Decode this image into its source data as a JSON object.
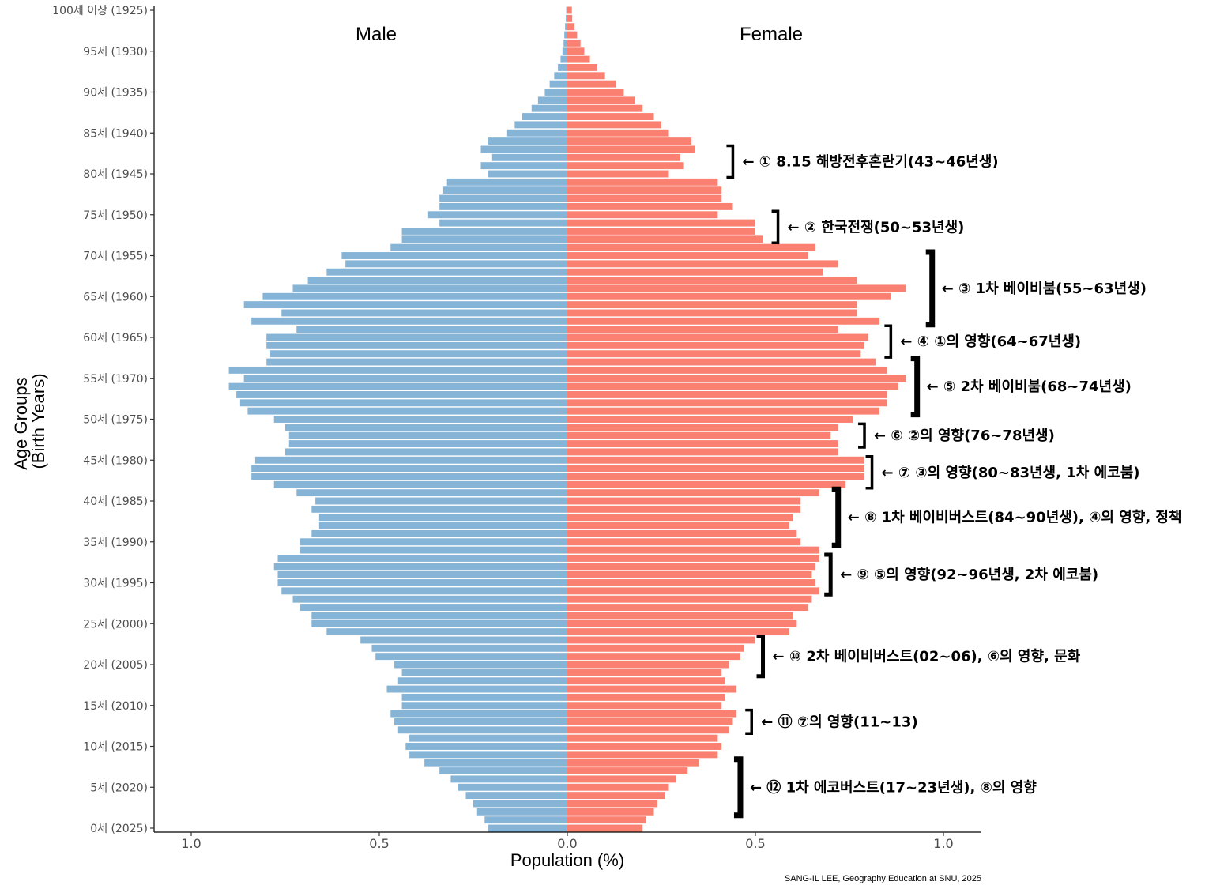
{
  "chart_data": {
    "type": "bar",
    "orientation": "horizontal",
    "subtype": "population-pyramid",
    "xlabel": "Population (%)",
    "ylabel": "Age Groups\n(Birth Years)",
    "xlim": [
      -1.1,
      1.1
    ],
    "x_ticks": [
      -1.0,
      -0.5,
      0.0,
      0.5,
      1.0
    ],
    "x_tick_labels": [
      "1.0",
      "0.5",
      "0.0",
      "0.5",
      "1.0"
    ],
    "grid": false,
    "panel_labels": [
      "Male",
      "Female"
    ],
    "colors": {
      "male": "#86b4d6",
      "female": "#fa8072",
      "axis": "#000000",
      "tick_text": "#4d4d4d"
    },
    "y_ticks": [
      {
        "age": 100,
        "label": "100세 이상 (1925)"
      },
      {
        "age": 95,
        "label": "95세 (1930)"
      },
      {
        "age": 90,
        "label": "90세 (1935)"
      },
      {
        "age": 85,
        "label": "85세 (1940)"
      },
      {
        "age": 80,
        "label": "80세 (1945)"
      },
      {
        "age": 75,
        "label": "75세 (1950)"
      },
      {
        "age": 70,
        "label": "70세 (1955)"
      },
      {
        "age": 65,
        "label": "65세 (1960)"
      },
      {
        "age": 60,
        "label": "60세 (1965)"
      },
      {
        "age": 55,
        "label": "55세 (1970)"
      },
      {
        "age": 50,
        "label": "50세 (1975)"
      },
      {
        "age": 45,
        "label": "45세 (1980)"
      },
      {
        "age": 40,
        "label": "40세 (1985)"
      },
      {
        "age": 35,
        "label": "35세 (1990)"
      },
      {
        "age": 30,
        "label": "30세 (1995)"
      },
      {
        "age": 25,
        "label": "25세 (2000)"
      },
      {
        "age": 20,
        "label": "20세 (2005)"
      },
      {
        "age": 15,
        "label": "15세 (2010)"
      },
      {
        "age": 10,
        "label": "10세 (2015)"
      },
      {
        "age": 5,
        "label": "5세 (2020)"
      },
      {
        "age": 0,
        "label": "0세 (2025)"
      }
    ],
    "ages": [
      0,
      1,
      2,
      3,
      4,
      5,
      6,
      7,
      8,
      9,
      10,
      11,
      12,
      13,
      14,
      15,
      16,
      17,
      18,
      19,
      20,
      21,
      22,
      23,
      24,
      25,
      26,
      27,
      28,
      29,
      30,
      31,
      32,
      33,
      34,
      35,
      36,
      37,
      38,
      39,
      40,
      41,
      42,
      43,
      44,
      45,
      46,
      47,
      48,
      49,
      50,
      51,
      52,
      53,
      54,
      55,
      56,
      57,
      58,
      59,
      60,
      61,
      62,
      63,
      64,
      65,
      66,
      67,
      68,
      69,
      70,
      71,
      72,
      73,
      74,
      75,
      76,
      77,
      78,
      79,
      80,
      81,
      82,
      83,
      84,
      85,
      86,
      87,
      88,
      89,
      90,
      91,
      92,
      93,
      94,
      95,
      96,
      97,
      98,
      99,
      100
    ],
    "series": [
      {
        "name": "Male",
        "values": [
          0.21,
          0.22,
          0.24,
          0.25,
          0.27,
          0.29,
          0.31,
          0.34,
          0.38,
          0.42,
          0.43,
          0.42,
          0.45,
          0.46,
          0.47,
          0.44,
          0.44,
          0.48,
          0.45,
          0.44,
          0.46,
          0.51,
          0.52,
          0.55,
          0.64,
          0.68,
          0.68,
          0.71,
          0.73,
          0.76,
          0.77,
          0.77,
          0.78,
          0.77,
          0.71,
          0.71,
          0.68,
          0.66,
          0.66,
          0.68,
          0.67,
          0.72,
          0.78,
          0.84,
          0.84,
          0.83,
          0.75,
          0.74,
          0.74,
          0.75,
          0.78,
          0.85,
          0.87,
          0.88,
          0.9,
          0.86,
          0.9,
          0.8,
          0.79,
          0.8,
          0.8,
          0.72,
          0.84,
          0.76,
          0.86,
          0.81,
          0.73,
          0.69,
          0.64,
          0.59,
          0.6,
          0.47,
          0.44,
          0.44,
          0.34,
          0.37,
          0.34,
          0.34,
          0.33,
          0.32,
          0.21,
          0.23,
          0.2,
          0.23,
          0.21,
          0.16,
          0.14,
          0.12,
          0.095,
          0.078,
          0.06,
          0.047,
          0.035,
          0.025,
          0.018,
          0.013,
          0.01,
          0.008,
          0.006,
          0.004,
          0.003
        ]
      },
      {
        "name": "Female",
        "values": [
          0.2,
          0.21,
          0.23,
          0.24,
          0.26,
          0.27,
          0.29,
          0.32,
          0.35,
          0.4,
          0.41,
          0.4,
          0.43,
          0.44,
          0.45,
          0.41,
          0.42,
          0.45,
          0.42,
          0.41,
          0.43,
          0.46,
          0.47,
          0.5,
          0.59,
          0.61,
          0.6,
          0.64,
          0.65,
          0.67,
          0.66,
          0.65,
          0.66,
          0.67,
          0.67,
          0.62,
          0.61,
          0.59,
          0.6,
          0.62,
          0.62,
          0.67,
          0.74,
          0.79,
          0.79,
          0.79,
          0.72,
          0.72,
          0.7,
          0.72,
          0.76,
          0.83,
          0.85,
          0.85,
          0.88,
          0.9,
          0.85,
          0.82,
          0.78,
          0.79,
          0.8,
          0.72,
          0.83,
          0.77,
          0.77,
          0.86,
          0.9,
          0.77,
          0.68,
          0.72,
          0.64,
          0.66,
          0.52,
          0.5,
          0.5,
          0.4,
          0.44,
          0.41,
          0.41,
          0.4,
          0.27,
          0.31,
          0.3,
          0.34,
          0.33,
          0.27,
          0.25,
          0.23,
          0.2,
          0.18,
          0.15,
          0.13,
          0.1,
          0.08,
          0.06,
          0.045,
          0.035,
          0.026,
          0.019,
          0.013,
          0.012
        ]
      }
    ],
    "annotations": [
      {
        "text": "← ① 8.15 해방전후혼란기(43~46년생)",
        "ages": [
          80,
          83
        ],
        "bracket_x": 0.44
      },
      {
        "text": "← ② 한국전쟁(50~53년생)",
        "ages": [
          72,
          75
        ],
        "bracket_x": 0.56
      },
      {
        "text": "← ③ 1차 베이비붐(55~63년생)",
        "ages": [
          62,
          70
        ],
        "bracket_x": 0.97
      },
      {
        "text": "← ④ ①의 영향(64~67년생)",
        "ages": [
          58,
          61
        ],
        "bracket_x": 0.86
      },
      {
        "text": "← ⑤ 2차 베이비붐(68~74년생)",
        "ages": [
          51,
          57
        ],
        "bracket_x": 0.93
      },
      {
        "text": "← ⑥ ②의 영향(76~78년생)",
        "ages": [
          47,
          49
        ],
        "bracket_x": 0.79
      },
      {
        "text": "← ⑦ ③의 영향(80~83년생, 1차 에코붐)",
        "ages": [
          42,
          45
        ],
        "bracket_x": 0.81
      },
      {
        "text": "← ⑧ 1차 베이비버스트(84~90년생), ④의 영향, 정책",
        "ages": [
          35,
          41
        ],
        "bracket_x": 0.72
      },
      {
        "text": "← ⑨ ⑤의 영향(92~96년생, 2차 에코붐)",
        "ages": [
          29,
          33
        ],
        "bracket_x": 0.7
      },
      {
        "text": "← ⑩ 2차 베이비버스트(02~06), ⑥의 영향, 문화",
        "ages": [
          19,
          23
        ],
        "bracket_x": 0.52
      },
      {
        "text": "← ⑪ ⑦의 영향(11~13)",
        "ages": [
          12,
          14
        ],
        "bracket_x": 0.49
      },
      {
        "text": "← ⑫ 1차 에코버스트(17~23년생), ⑧의 영향",
        "ages": [
          2,
          8
        ],
        "bracket_x": 0.46
      }
    ],
    "caption": "SANG-IL LEE, Geography Education at SNU, 2025"
  }
}
